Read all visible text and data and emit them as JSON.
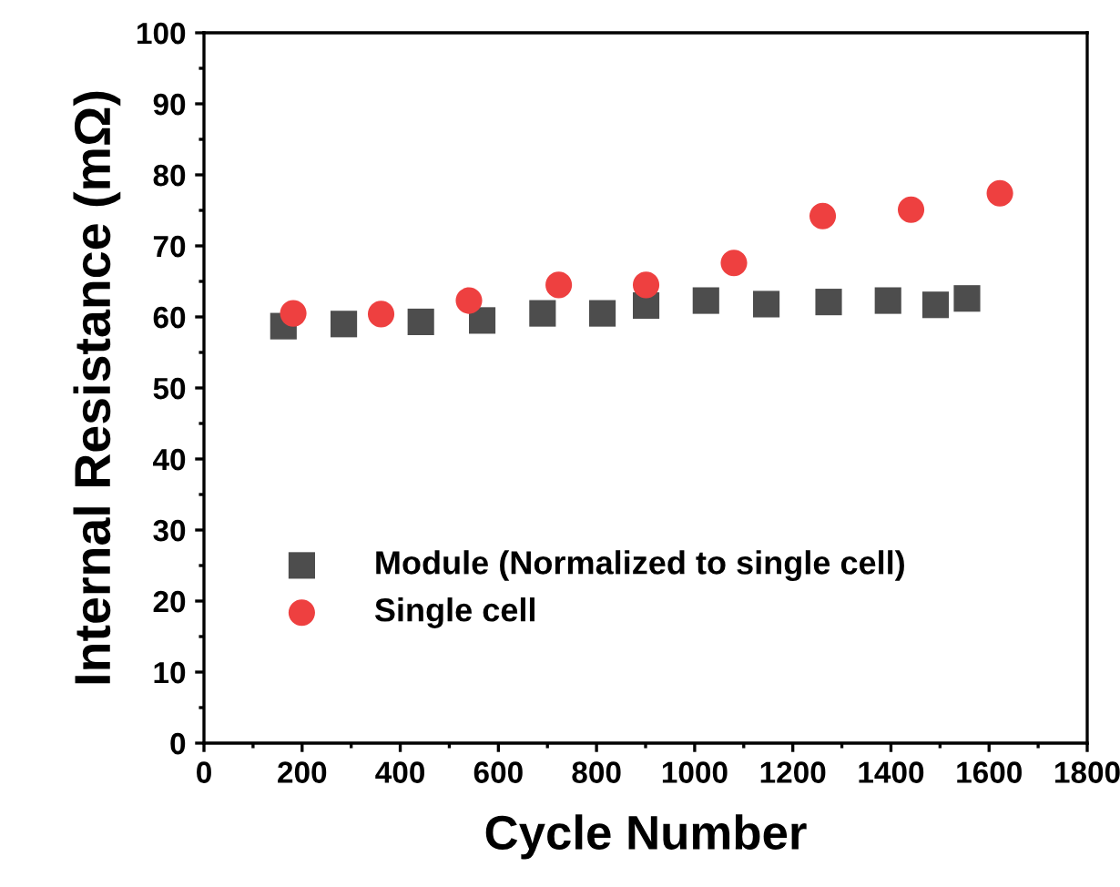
{
  "chart_data": {
    "type": "scatter",
    "xlabel": "Cycle Number",
    "ylabel": "Internal Resistance (mΩ)",
    "xlim": [
      0,
      1800
    ],
    "xticks": [
      0,
      200,
      400,
      600,
      800,
      1000,
      1200,
      1400,
      1600,
      1800
    ],
    "ylim": [
      0,
      100
    ],
    "yticks": [
      0,
      10,
      20,
      30,
      40,
      50,
      60,
      70,
      80,
      90,
      100
    ],
    "legend": "lower left",
    "grid": false,
    "series": [
      {
        "name": "Module (Normalized to single cell)",
        "color": "#4d4d4d",
        "marker": "square",
        "x": [
          162,
          285,
          442,
          567,
          690,
          812,
          901,
          1023,
          1146,
          1273,
          1394,
          1491,
          1555
        ],
        "values": [
          58.7,
          59.0,
          59.3,
          59.5,
          60.5,
          60.5,
          61.6,
          62.3,
          61.8,
          62.1,
          62.3,
          61.7,
          62.6
        ]
      },
      {
        "name": "Single cell",
        "color": "#ee4040",
        "marker": "circle",
        "x": [
          182,
          361,
          540,
          723,
          901,
          1080,
          1261,
          1441,
          1622
        ],
        "values": [
          60.5,
          60.4,
          62.3,
          64.5,
          64.5,
          67.6,
          74.2,
          75.1,
          77.4
        ]
      }
    ]
  }
}
